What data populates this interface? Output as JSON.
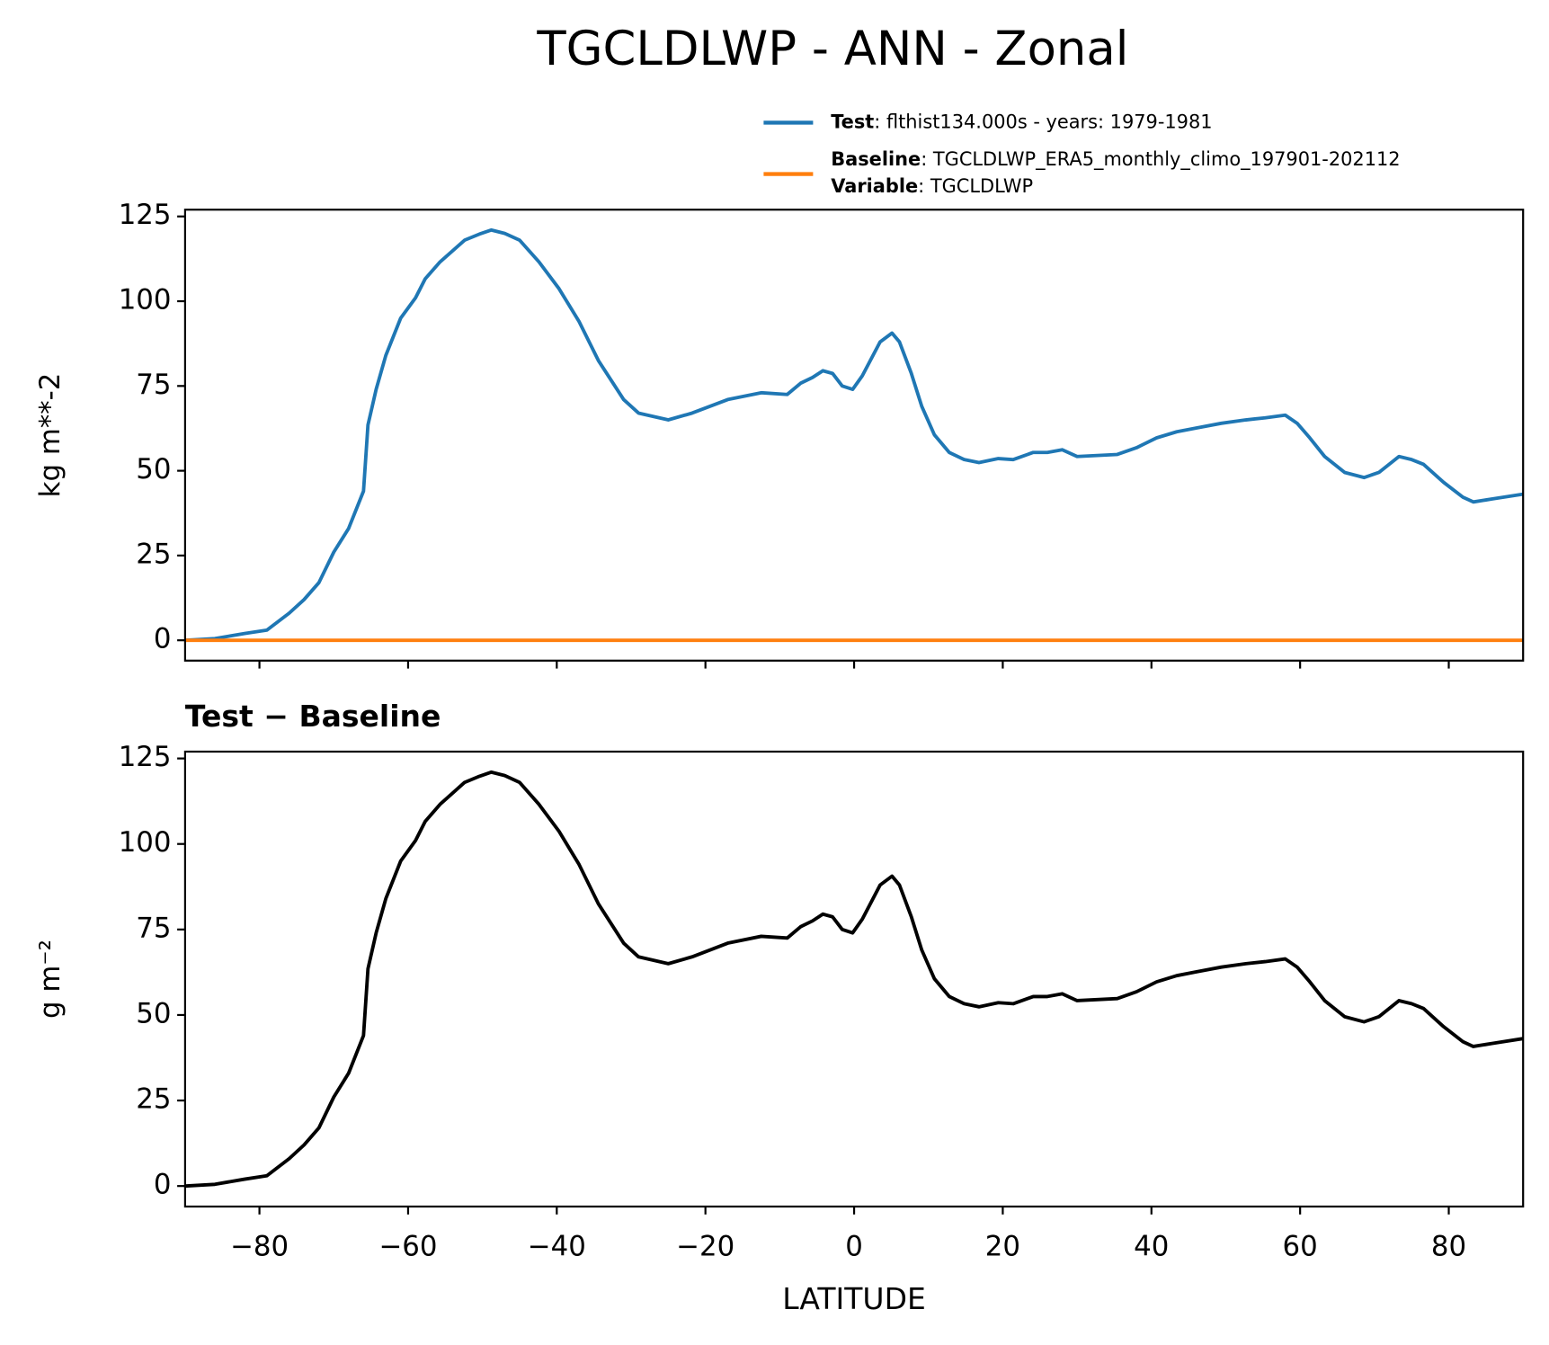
{
  "chart_data": [
    {
      "type": "line",
      "title": "TGCLDLWP - ANN - Zonal",
      "ylabel": "kg m**-2",
      "x": [
        -90,
        -86,
        -82,
        -79,
        -76,
        -74,
        -72,
        -70,
        -68,
        -66,
        -65.4,
        -64.3,
        -63,
        -61,
        -59,
        -57.7,
        -55.7,
        -52.4,
        -50.4,
        -48.8,
        -47,
        -45,
        -42.4,
        -39.7,
        -37,
        -34.4,
        -31,
        -29,
        -25,
        -21.8,
        -17,
        -12.5,
        -9,
        -7.2,
        -5.6,
        -4.2,
        -2.9,
        -1.6,
        -0.2,
        1.1,
        3.5,
        5.1,
        6.1,
        7.7,
        9.1,
        10.8,
        12.8,
        14.8,
        16.8,
        19.4,
        21.4,
        24.1,
        26,
        28,
        30,
        32.7,
        35.4,
        38,
        40.7,
        43.4,
        46,
        49.4,
        52.7,
        55.3,
        58,
        59.6,
        61.3,
        63.3,
        66,
        68.6,
        70.6,
        73.3,
        75,
        76.6,
        79.3,
        81.9,
        83.3,
        85.9,
        90
      ],
      "series": [
        {
          "name": "Test",
          "label": ": flthist134.000s - years: 1979-1981",
          "color": "#1f77b4",
          "values": [
            0,
            0.5,
            2,
            3,
            8,
            12,
            17,
            26,
            33,
            44,
            63.5,
            74,
            84,
            95,
            101,
            106.6,
            111.6,
            118,
            119.8,
            121,
            120,
            118,
            111.6,
            103.7,
            94,
            82.5,
            71,
            67,
            65,
            67,
            71,
            73,
            72.5,
            75.8,
            77.5,
            79.5,
            78.7,
            75,
            74,
            78,
            88,
            90.6,
            88,
            78.7,
            69,
            60.6,
            55.4,
            53.3,
            52.4,
            53.6,
            53.3,
            55.4,
            55.4,
            56.2,
            54.2,
            54.5,
            54.8,
            56.8,
            59.7,
            61.5,
            62.6,
            64,
            65,
            65.6,
            66.4,
            64,
            59.7,
            54.2,
            49.5,
            48,
            49.5,
            54.2,
            53.3,
            51.9,
            46.6,
            42.2,
            40.8,
            41.7,
            43.1
          ]
        },
        {
          "name": "Baseline",
          "label": ": TGCLDLWP_ERA5_monthly_climo_197901-202112",
          "color": "#ff7f0e",
          "values": [
            0,
            0,
            0,
            0,
            0,
            0,
            0,
            0,
            0,
            0,
            0,
            0,
            0,
            0,
            0,
            0,
            0,
            0,
            0,
            0,
            0,
            0,
            0,
            0,
            0,
            0,
            0,
            0,
            0,
            0,
            0,
            0,
            0,
            0,
            0,
            0,
            0,
            0,
            0,
            0,
            0,
            0,
            0,
            0,
            0,
            0,
            0,
            0,
            0,
            0,
            0,
            0,
            0,
            0,
            0,
            0,
            0,
            0,
            0,
            0,
            0,
            0,
            0,
            0,
            0,
            0,
            0,
            0,
            0,
            0,
            0,
            0,
            0,
            0,
            0,
            0,
            0,
            0,
            0
          ]
        }
      ],
      "legend_note": {
        "name": "Variable",
        "label": ": TGCLDLWP"
      },
      "xlim": [
        -90,
        90
      ],
      "ylim": [
        -6,
        127
      ],
      "yticks": [
        0,
        25,
        50,
        75,
        100,
        125
      ],
      "xticks": [
        -80,
        -60,
        -40,
        -20,
        0,
        20,
        40,
        60,
        80
      ]
    },
    {
      "type": "line",
      "title": "Test − Baseline",
      "ylabel": "g m⁻²",
      "xlabel": "LATITUDE",
      "x": [
        -90,
        -86,
        -82,
        -79,
        -76,
        -74,
        -72,
        -70,
        -68,
        -66,
        -65.4,
        -64.3,
        -63,
        -61,
        -59,
        -57.7,
        -55.7,
        -52.4,
        -50.4,
        -48.8,
        -47,
        -45,
        -42.4,
        -39.7,
        -37,
        -34.4,
        -31,
        -29,
        -25,
        -21.8,
        -17,
        -12.5,
        -9,
        -7.2,
        -5.6,
        -4.2,
        -2.9,
        -1.6,
        -0.2,
        1.1,
        3.5,
        5.1,
        6.1,
        7.7,
        9.1,
        10.8,
        12.8,
        14.8,
        16.8,
        19.4,
        21.4,
        24.1,
        26,
        28,
        30,
        32.7,
        35.4,
        38,
        40.7,
        43.4,
        46,
        49.4,
        52.7,
        55.3,
        58,
        59.6,
        61.3,
        63.3,
        66,
        68.6,
        70.6,
        73.3,
        75,
        76.6,
        79.3,
        81.9,
        83.3,
        85.9,
        90
      ],
      "series": [
        {
          "color": "#000000",
          "values": [
            0,
            0.5,
            2,
            3,
            8,
            12,
            17,
            26,
            33,
            44,
            63.5,
            74,
            84,
            95,
            101,
            106.6,
            111.6,
            118,
            119.8,
            121,
            120,
            118,
            111.6,
            103.7,
            94,
            82.5,
            71,
            67,
            65,
            67,
            71,
            73,
            72.5,
            75.8,
            77.5,
            79.5,
            78.7,
            75,
            74,
            78,
            88,
            90.6,
            88,
            78.7,
            69,
            60.6,
            55.4,
            53.3,
            52.4,
            53.6,
            53.3,
            55.4,
            55.4,
            56.2,
            54.2,
            54.5,
            54.8,
            56.8,
            59.7,
            61.5,
            62.6,
            64,
            65,
            65.6,
            66.4,
            64,
            59.7,
            54.2,
            49.5,
            48,
            49.5,
            54.2,
            53.3,
            51.9,
            46.6,
            42.2,
            40.8,
            41.7,
            43.1
          ]
        }
      ],
      "xlim": [
        -90,
        90
      ],
      "ylim": [
        -6,
        127
      ],
      "yticks": [
        0,
        25,
        50,
        75,
        100,
        125
      ],
      "xticks": [
        {
          "value": -80,
          "label": "−80"
        },
        {
          "value": -60,
          "label": "−60"
        },
        {
          "value": -40,
          "label": "−40"
        },
        {
          "value": -20,
          "label": "−20"
        },
        0,
        20,
        40,
        60,
        80
      ]
    }
  ]
}
